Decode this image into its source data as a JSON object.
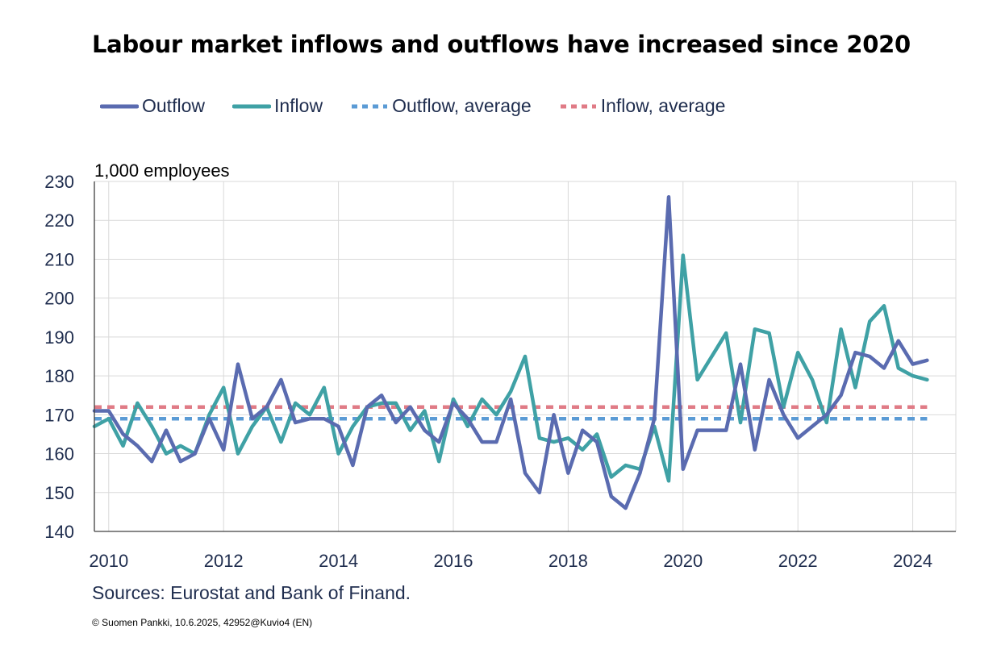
{
  "chart_data": {
    "type": "line",
    "title": "Labour market inflows and outflows have increased since 2020",
    "ylabel": "1,000 employees",
    "ylim": [
      140,
      230
    ],
    "yticks": [
      140,
      150,
      160,
      170,
      180,
      190,
      200,
      210,
      220,
      230
    ],
    "xlim": [
      2009.75,
      2024.75
    ],
    "xticks": [
      2010,
      2012,
      2014,
      2016,
      2018,
      2020,
      2022,
      2024
    ],
    "grid": true,
    "legend_position": "top",
    "series": [
      {
        "name": "Outflow",
        "color": "#5a6bb0",
        "style": "solid",
        "x": [
          2009.75,
          2010.0,
          2010.25,
          2010.5,
          2010.75,
          2011.0,
          2011.25,
          2011.5,
          2011.75,
          2012.0,
          2012.25,
          2012.5,
          2012.75,
          2013.0,
          2013.25,
          2013.5,
          2013.75,
          2014.0,
          2014.25,
          2014.5,
          2014.75,
          2015.0,
          2015.25,
          2015.5,
          2015.75,
          2016.0,
          2016.25,
          2016.5,
          2016.75,
          2017.0,
          2017.25,
          2017.5,
          2017.75,
          2018.0,
          2018.25,
          2018.5,
          2018.75,
          2019.0,
          2019.25,
          2019.5,
          2019.75,
          2020.0,
          2020.25,
          2020.5,
          2020.75,
          2021.0,
          2021.25,
          2021.5,
          2021.75,
          2022.0,
          2022.25,
          2022.5,
          2022.75,
          2023.0,
          2023.25,
          2023.5,
          2023.75,
          2024.0,
          2024.25
        ],
        "values": [
          171,
          171,
          165,
          162,
          158,
          166,
          158,
          160,
          169,
          161,
          183,
          169,
          172,
          179,
          168,
          169,
          169,
          167,
          157,
          172,
          175,
          168,
          172,
          166,
          163,
          173,
          169,
          163,
          163,
          174,
          155,
          150,
          170,
          155,
          166,
          163,
          149,
          146,
          155,
          169,
          226,
          156,
          166,
          166,
          166,
          183,
          161,
          179,
          170,
          164,
          167,
          170,
          175,
          186,
          185,
          182,
          189,
          183,
          184
        ]
      },
      {
        "name": "Inflow",
        "color": "#3fa1a5",
        "style": "solid",
        "x": [
          2009.75,
          2010.0,
          2010.25,
          2010.5,
          2010.75,
          2011.0,
          2011.25,
          2011.5,
          2011.75,
          2012.0,
          2012.25,
          2012.5,
          2012.75,
          2013.0,
          2013.25,
          2013.5,
          2013.75,
          2014.0,
          2014.25,
          2014.5,
          2014.75,
          2015.0,
          2015.25,
          2015.5,
          2015.75,
          2016.0,
          2016.25,
          2016.5,
          2016.75,
          2017.0,
          2017.25,
          2017.5,
          2017.75,
          2018.0,
          2018.25,
          2018.5,
          2018.75,
          2019.0,
          2019.25,
          2019.5,
          2019.75,
          2020.0,
          2020.25,
          2020.5,
          2020.75,
          2021.0,
          2021.25,
          2021.5,
          2021.75,
          2022.0,
          2022.25,
          2022.5,
          2022.75,
          2023.0,
          2023.25,
          2023.5,
          2023.75,
          2024.0,
          2024.25
        ],
        "values": [
          167,
          169,
          162,
          173,
          167,
          160,
          162,
          160,
          170,
          177,
          160,
          167,
          172,
          163,
          173,
          170,
          177,
          160,
          167,
          172,
          173,
          173,
          166,
          171,
          158,
          174,
          167,
          174,
          170,
          176,
          185,
          164,
          163,
          164,
          161,
          165,
          154,
          157,
          156,
          167,
          153,
          211,
          179,
          185,
          191,
          168,
          192,
          191,
          172,
          186,
          179,
          168,
          192,
          177,
          194,
          198,
          182,
          180,
          179
        ]
      },
      {
        "name": "Outflow, average",
        "color": "#5b9bd5",
        "style": "dashed",
        "x": [
          2009.75,
          2024.25
        ],
        "values": [
          169,
          169
        ]
      },
      {
        "name": "Inflow, average",
        "color": "#e07b86",
        "style": "dashed",
        "x": [
          2009.75,
          2024.25
        ],
        "values": [
          172,
          172
        ]
      }
    ]
  },
  "sources": "Sources: Eurostat and Bank of Finand.",
  "copyright": "© Suomen Pankki, 10.6.2025,  42952@Kuvio4  (EN)"
}
